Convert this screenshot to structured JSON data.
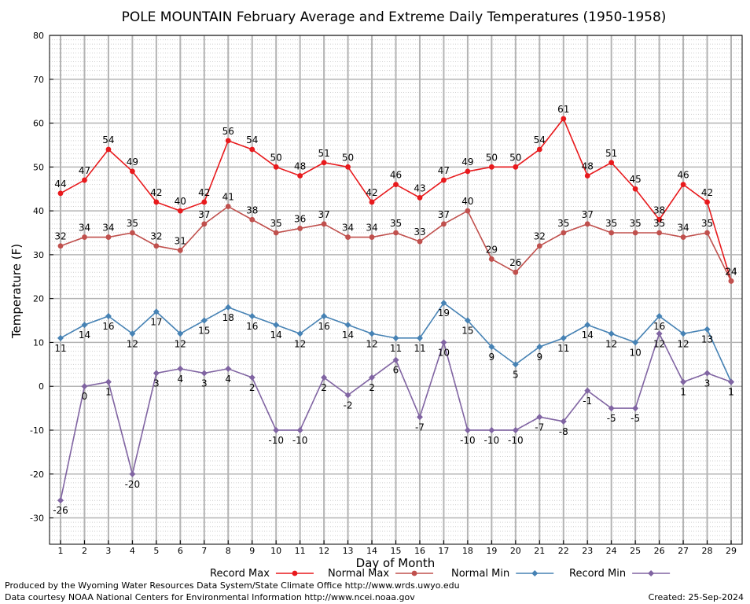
{
  "chart_data": {
    "type": "line",
    "title": "POLE MOUNTAIN February Average and Extreme Daily Temperatures (1950-1958)",
    "xlabel": "Day of Month",
    "ylabel": "Temperature (F)",
    "ylim": [
      -36,
      80
    ],
    "yticks": [
      -30,
      -20,
      -10,
      0,
      10,
      20,
      30,
      40,
      50,
      60,
      70,
      80
    ],
    "x": [
      1,
      2,
      3,
      4,
      5,
      6,
      7,
      8,
      9,
      10,
      11,
      12,
      13,
      14,
      15,
      16,
      17,
      18,
      19,
      20,
      21,
      22,
      23,
      24,
      25,
      26,
      27,
      28,
      29
    ],
    "grid": true,
    "legend_position": "bottom",
    "series": [
      {
        "name": "Record Max",
        "color": "#e8191c",
        "values": [
          44,
          47,
          54,
          49,
          42,
          40,
          42,
          56,
          54,
          50,
          48,
          51,
          50,
          42,
          46,
          43,
          47,
          49,
          50,
          50,
          54,
          61,
          48,
          51,
          45,
          38,
          46,
          42,
          24
        ],
        "label_pos": "above"
      },
      {
        "name": "Normal Max",
        "color": "#c0504d",
        "values": [
          32,
          34,
          34,
          35,
          32,
          31,
          37,
          41,
          38,
          35,
          36,
          37,
          34,
          34,
          35,
          33,
          37,
          40,
          29,
          26,
          32,
          35,
          37,
          35,
          35,
          35,
          34,
          35,
          24
        ],
        "label_pos": "above"
      },
      {
        "name": "Normal Min",
        "color": "#4682b4",
        "values": [
          11,
          14,
          16,
          12,
          17,
          12,
          15,
          18,
          16,
          14,
          12,
          16,
          14,
          12,
          11,
          11,
          19,
          15,
          9,
          5,
          9,
          11,
          14,
          12,
          10,
          16,
          12,
          13,
          1
        ],
        "label_pos": "below"
      },
      {
        "name": "Record Min",
        "color": "#8064a2",
        "values": [
          -26,
          0,
          1,
          -20,
          3,
          4,
          3,
          4,
          2,
          -10,
          -10,
          2,
          -2,
          2,
          6,
          -7,
          10,
          -10,
          -10,
          -10,
          -7,
          -8,
          -1,
          -5,
          -5,
          12,
          1,
          3,
          1
        ],
        "label_pos": "below"
      }
    ]
  },
  "footer": {
    "produced_by": "Produced by the Wyoming Water Resources Data System/State Climate Office http://www.wrds.uwyo.edu",
    "courtesy": "Data courtesy NOAA National Centers for Environmental Information http://www.ncei.noaa.gov",
    "created": "Created:  25-Sep-2024"
  }
}
